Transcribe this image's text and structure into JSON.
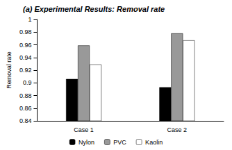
{
  "chart_data": {
    "type": "bar",
    "title": "(a) Experimental Results: Removal rate",
    "y_label": "Removal rate",
    "categories": [
      "Case 1",
      "Case 2"
    ],
    "series": [
      {
        "name": "Nylon",
        "color": "#000000",
        "values": [
          0.906,
          0.893
        ]
      },
      {
        "name": "PVC",
        "color": "#999999",
        "values": [
          0.959,
          0.978
        ]
      },
      {
        "name": "Kaolin",
        "color": "#ffffff",
        "values": [
          0.929,
          0.967
        ]
      }
    ],
    "ylim": [
      0.84,
      1
    ],
    "yticks": [
      0.84,
      0.86,
      0.88,
      0.9,
      0.92,
      0.94,
      0.96,
      0.98,
      1
    ],
    "grid": false,
    "legend": "bottom"
  }
}
